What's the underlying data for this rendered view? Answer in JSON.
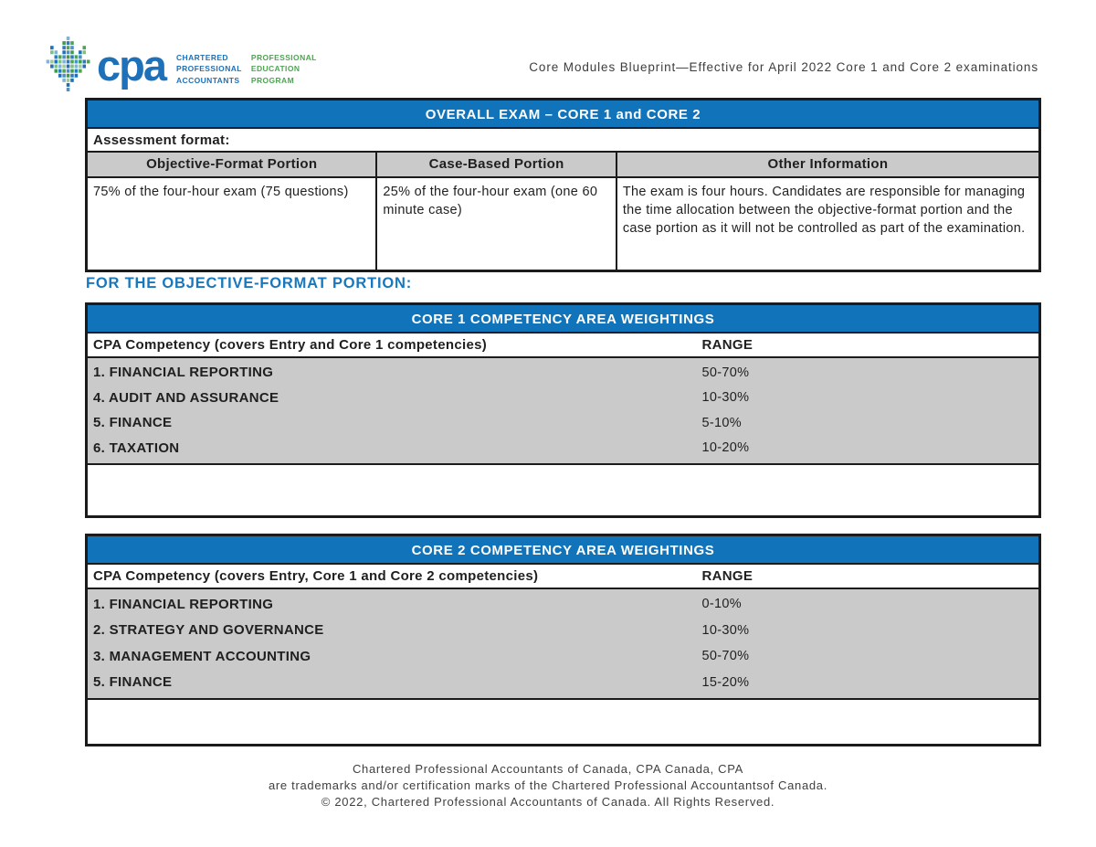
{
  "header": {
    "logo": {
      "brand": "cpa",
      "left_lines": [
        "CHARTERED",
        "PROFESSIONAL",
        "ACCOUNTANTS"
      ],
      "right_lines": [
        "PROFESSIONAL",
        "EDUCATION",
        "PROGRAM"
      ]
    },
    "title": "Core Modules Blueprint—Effective for April 2022 Core 1 and Core 2 examinations"
  },
  "colors": {
    "table_header_blue": "#1173b9",
    "section_heading_blue": "#1878be",
    "row_gray": "#cacaca",
    "logo_blue": "#1e71b8",
    "logo_green": "#4fa353"
  },
  "overall": {
    "title": "OVERALL EXAM – CORE 1 and CORE 2",
    "assessment_label": "Assessment format:",
    "columns": [
      "Objective-Format Portion",
      "Case-Based Portion",
      "Other Information"
    ],
    "cells": [
      "75% of the four-hour exam (75 questions)",
      "25% of the four-hour exam (one 60 minute case)",
      "The exam is four hours. Candidates are responsible for managing the time allocation between the objective-format portion and the case portion as it will not be controlled as part of the examination."
    ]
  },
  "section_heading": "FOR THE OBJECTIVE-FORMAT PORTION:",
  "core1": {
    "title": "CORE 1 COMPETENCY AREA WEIGHTINGS",
    "competency_header": "CPA Competency (covers Entry and Core 1 competencies)",
    "range_header": "RANGE",
    "rows": [
      {
        "competency": "1. FINANCIAL REPORTING",
        "range": "50-70%"
      },
      {
        "competency": "4. AUDIT AND ASSURANCE",
        "range": "10-30%"
      },
      {
        "competency": "5. FINANCE",
        "range": "5-10%"
      },
      {
        "competency": "6. TAXATION",
        "range": "10-20%"
      }
    ]
  },
  "core2": {
    "title": "CORE 2 COMPETENCY AREA WEIGHTINGS",
    "competency_header": "CPA Competency (covers Entry, Core 1 and Core 2 competencies)",
    "range_header": "RANGE",
    "rows": [
      {
        "competency": "1. FINANCIAL REPORTING",
        "range": "0-10%"
      },
      {
        "competency": "2. STRATEGY AND GOVERNANCE",
        "range": "10-30%"
      },
      {
        "competency": "3. MANAGEMENT ACCOUNTING",
        "range": "50-70%"
      },
      {
        "competency": "5. FINANCE",
        "range": "15-20%"
      }
    ]
  },
  "footer": {
    "lines": [
      "Chartered Professional Accountants of Canada, CPA Canada, CPA",
      "are trademarks and/or certification marks of the Chartered Professional Accountantsof Canada.",
      "© 2022, Chartered Professional Accountants of Canada. All Rights Reserved."
    ]
  }
}
